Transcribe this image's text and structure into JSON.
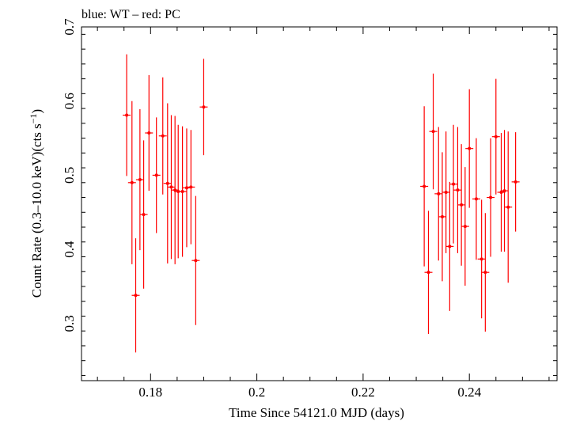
{
  "chart_data": {
    "type": "scatter",
    "title": "blue: WT – red: PC",
    "xlabel": "Time Since 54121.0 MJD (days)",
    "ylabel_main": "Count Rate (0.3–10.0 keV)(cts s",
    "ylabel_sup": "−1",
    "ylabel_close": ")",
    "xlim": [
      0.167,
      0.2565
    ],
    "ylim": [
      0.223,
      0.7
    ],
    "x_ticks": [
      0.18,
      0.2,
      0.22,
      0.24
    ],
    "x_tick_labels": [
      "0.18",
      "0.2",
      "0.22",
      "0.24"
    ],
    "y_ticks": [
      0.3,
      0.4,
      0.5,
      0.6,
      0.7
    ],
    "y_tick_labels": [
      "0.3",
      "0.4",
      "0.5",
      "0.6",
      "0.7"
    ],
    "grid": false,
    "series": [
      {
        "color": "#ff0000",
        "points": [
          {
            "x": 0.1755,
            "y": 0.581,
            "err": 0.082
          },
          {
            "x": 0.1765,
            "y": 0.49,
            "err": 0.11
          },
          {
            "x": 0.1772,
            "y": 0.338,
            "err": 0.077
          },
          {
            "x": 0.178,
            "y": 0.494,
            "err": 0.095
          },
          {
            "x": 0.1787,
            "y": 0.447,
            "err": 0.1
          },
          {
            "x": 0.1797,
            "y": 0.557,
            "err": 0.078
          },
          {
            "x": 0.1811,
            "y": 0.5,
            "err": 0.078
          },
          {
            "x": 0.1823,
            "y": 0.553,
            "err": 0.079
          },
          {
            "x": 0.1832,
            "y": 0.489,
            "err": 0.108
          },
          {
            "x": 0.1839,
            "y": 0.484,
            "err": 0.097
          },
          {
            "x": 0.1846,
            "y": 0.48,
            "err": 0.1
          },
          {
            "x": 0.1852,
            "y": 0.478,
            "err": 0.09
          },
          {
            "x": 0.186,
            "y": 0.478,
            "err": 0.088
          },
          {
            "x": 0.1868,
            "y": 0.483,
            "err": 0.08
          },
          {
            "x": 0.1876,
            "y": 0.484,
            "err": 0.077
          },
          {
            "x": 0.1885,
            "y": 0.385,
            "err": 0.087
          },
          {
            "x": 0.19,
            "y": 0.592,
            "err": 0.065
          },
          {
            "x": 0.2315,
            "y": 0.485,
            "err": 0.108
          },
          {
            "x": 0.2323,
            "y": 0.369,
            "err": 0.083
          },
          {
            "x": 0.2332,
            "y": 0.559,
            "err": 0.078
          },
          {
            "x": 0.2342,
            "y": 0.475,
            "err": 0.09
          },
          {
            "x": 0.2349,
            "y": 0.444,
            "err": 0.087
          },
          {
            "x": 0.2356,
            "y": 0.477,
            "err": 0.082
          },
          {
            "x": 0.2363,
            "y": 0.404,
            "err": 0.087
          },
          {
            "x": 0.237,
            "y": 0.488,
            "err": 0.08
          },
          {
            "x": 0.2378,
            "y": 0.48,
            "err": 0.085
          },
          {
            "x": 0.2385,
            "y": 0.46,
            "err": 0.082
          },
          {
            "x": 0.2392,
            "y": 0.431,
            "err": 0.08
          },
          {
            "x": 0.24,
            "y": 0.536,
            "err": 0.08
          },
          {
            "x": 0.2413,
            "y": 0.468,
            "err": 0.082
          },
          {
            "x": 0.2423,
            "y": 0.387,
            "err": 0.08
          },
          {
            "x": 0.243,
            "y": 0.369,
            "err": 0.08
          },
          {
            "x": 0.244,
            "y": 0.47,
            "err": 0.08
          },
          {
            "x": 0.245,
            "y": 0.552,
            "err": 0.078
          },
          {
            "x": 0.246,
            "y": 0.477,
            "err": 0.08
          },
          {
            "x": 0.2466,
            "y": 0.479,
            "err": 0.082
          },
          {
            "x": 0.2473,
            "y": 0.457,
            "err": 0.102
          },
          {
            "x": 0.2487,
            "y": 0.491,
            "err": 0.067
          }
        ]
      }
    ]
  }
}
